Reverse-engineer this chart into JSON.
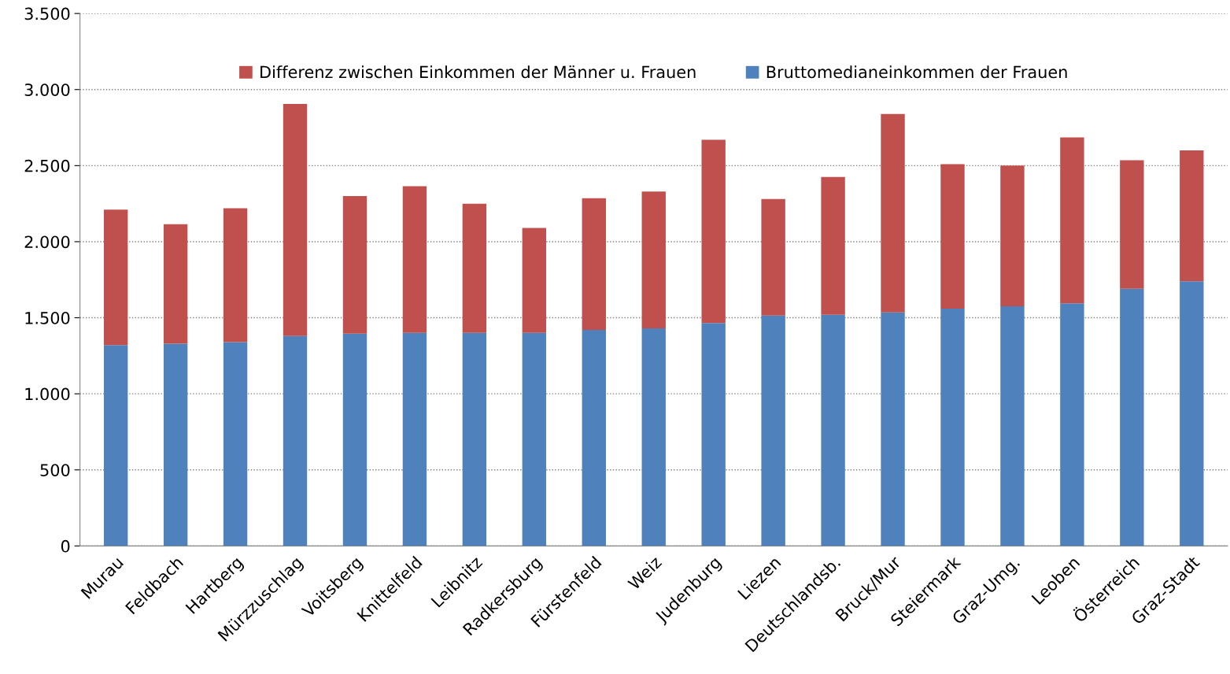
{
  "chart_data": {
    "type": "bar",
    "stacked": true,
    "categories": [
      "Murau",
      "Feldbach",
      "Hartberg",
      "Mürzzuschlag",
      "Voitsberg",
      "Knittelfeld",
      "Leibnitz",
      "Radkersburg",
      "Fürstenfeld",
      "Weiz",
      "Judenburg",
      "Liezen",
      "Deutschlandsb.",
      "Bruck/Mur",
      "Steiermark",
      "Graz-Umg.",
      "Leoben",
      "Österreich",
      "Graz-Stadt"
    ],
    "series": [
      {
        "name": "Bruttomedianeinkommen der Frauen",
        "color": "#4f81bd",
        "values": [
          1320,
          1330,
          1340,
          1380,
          1395,
          1400,
          1400,
          1400,
          1420,
          1430,
          1465,
          1515,
          1520,
          1535,
          1560,
          1575,
          1595,
          1690,
          1740
        ]
      },
      {
        "name": "Differenz zwischen Einkommen der Männer u. Frauen",
        "color": "#c0504d",
        "values": [
          890,
          785,
          880,
          1525,
          905,
          965,
          850,
          690,
          865,
          900,
          1205,
          765,
          905,
          1305,
          950,
          925,
          1090,
          845,
          860
        ]
      }
    ],
    "ylim": [
      0,
      3500
    ],
    "yticks": [
      0,
      500,
      {
        "value": 1000,
        "label": "1.000"
      },
      {
        "value": 1500,
        "label": "1.500"
      },
      {
        "value": 2000,
        "label": "2.000"
      },
      {
        "value": 2500,
        "label": "2.500"
      },
      {
        "value": 3000,
        "label": "3.000"
      },
      {
        "value": 3500,
        "label": "3.500"
      }
    ],
    "grid": "y",
    "legend": "top"
  }
}
